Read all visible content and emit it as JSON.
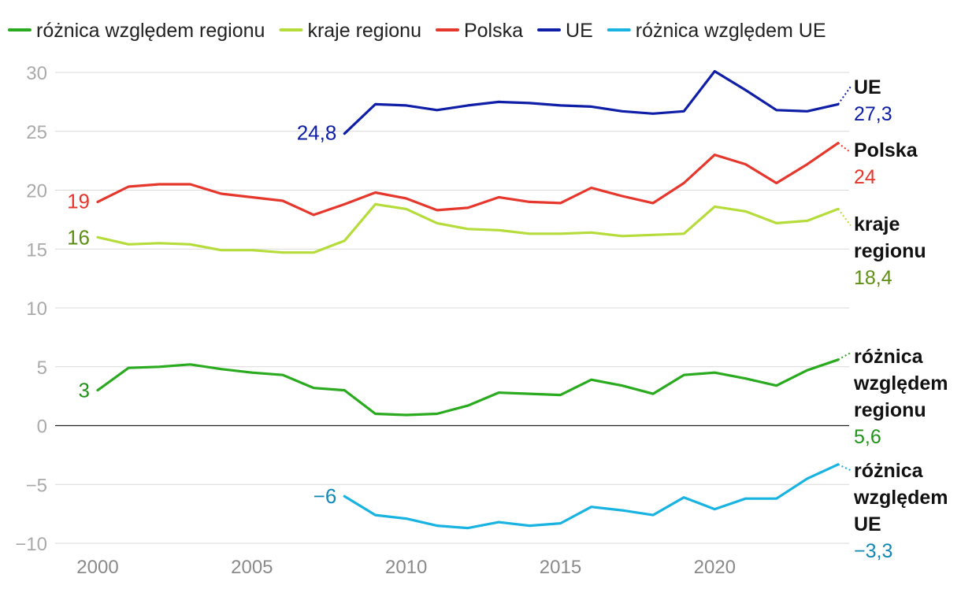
{
  "chart_data": {
    "type": "line",
    "title": "",
    "xlabel": "",
    "ylabel": "",
    "xlim": [
      2000,
      2024
    ],
    "ylim": [
      -10,
      30
    ],
    "yticks": [
      -10,
      -5,
      0,
      5,
      10,
      15,
      20,
      25,
      30
    ],
    "ytick_labels": [
      "−10",
      "−5",
      "0",
      "5",
      "10",
      "15",
      "20",
      "25",
      "30"
    ],
    "xticks": [
      2000,
      2005,
      2010,
      2015,
      2020
    ],
    "xtick_labels": [
      "2000",
      "2005",
      "2010",
      "2015",
      "2020"
    ],
    "grid": true,
    "legend_position": "top",
    "colors": {
      "roznica_regionu": "#2aaa1e",
      "roznica_regionu_text": "#21921a",
      "kraje_regionu": "#b6dc3c",
      "kraje_regionu_text": "#5e8f15",
      "polska": "#e6372d",
      "ue": "#0f1ea6",
      "roznica_ue": "#18b3e0",
      "roznica_ue_text": "#1289b5"
    },
    "series": [
      {
        "id": "roznica_regionu",
        "name": "różnica względem regionu",
        "end_label_lines": [
          "różnica",
          "względem",
          "regionu"
        ],
        "start_value_label": "3",
        "end_value_label": "5,6",
        "x": [
          2000,
          2001,
          2002,
          2003,
          2004,
          2005,
          2006,
          2007,
          2008,
          2009,
          2010,
          2011,
          2012,
          2013,
          2014,
          2015,
          2016,
          2017,
          2018,
          2019,
          2020,
          2021,
          2022,
          2023,
          2024
        ],
        "values": [
          3.0,
          4.9,
          5.0,
          5.2,
          4.8,
          4.5,
          4.3,
          3.2,
          3.0,
          1.0,
          0.9,
          1.0,
          1.7,
          2.8,
          2.7,
          2.6,
          3.9,
          3.4,
          2.7,
          4.3,
          4.5,
          4.0,
          3.4,
          4.7,
          5.6
        ]
      },
      {
        "id": "kraje_regionu",
        "name": "kraje regionu",
        "end_label_lines": [
          "kraje",
          "regionu"
        ],
        "start_value_label": "16",
        "end_value_label": "18,4",
        "x": [
          2000,
          2001,
          2002,
          2003,
          2004,
          2005,
          2006,
          2007,
          2008,
          2009,
          2010,
          2011,
          2012,
          2013,
          2014,
          2015,
          2016,
          2017,
          2018,
          2019,
          2020,
          2021,
          2022,
          2023,
          2024
        ],
        "values": [
          16.0,
          15.4,
          15.5,
          15.4,
          14.9,
          14.9,
          14.7,
          14.7,
          15.7,
          18.8,
          18.4,
          17.2,
          16.7,
          16.6,
          16.3,
          16.3,
          16.4,
          16.1,
          16.2,
          16.3,
          18.6,
          18.2,
          17.2,
          17.4,
          18.4
        ]
      },
      {
        "id": "polska",
        "name": "Polska",
        "end_label_lines": [
          "Polska"
        ],
        "start_value_label": "19",
        "end_value_label": "24",
        "x": [
          2000,
          2001,
          2002,
          2003,
          2004,
          2005,
          2006,
          2007,
          2008,
          2009,
          2010,
          2011,
          2012,
          2013,
          2014,
          2015,
          2016,
          2017,
          2018,
          2019,
          2020,
          2021,
          2022,
          2023,
          2024
        ],
        "values": [
          19.0,
          20.3,
          20.5,
          20.5,
          19.7,
          19.4,
          19.1,
          17.9,
          18.8,
          19.8,
          19.3,
          18.3,
          18.5,
          19.4,
          19.0,
          18.9,
          20.2,
          19.5,
          18.9,
          20.6,
          23.0,
          22.2,
          20.6,
          22.2,
          24.0
        ]
      },
      {
        "id": "ue",
        "name": "UE",
        "end_label_lines": [
          "UE"
        ],
        "start_value_label": "24,8",
        "end_value_label": "27,3",
        "x": [
          2008,
          2009,
          2010,
          2011,
          2012,
          2013,
          2014,
          2015,
          2016,
          2017,
          2018,
          2019,
          2020,
          2021,
          2022,
          2023,
          2024
        ],
        "values": [
          24.8,
          27.3,
          27.2,
          26.8,
          27.2,
          27.5,
          27.4,
          27.2,
          27.1,
          26.7,
          26.5,
          26.7,
          30.1,
          28.5,
          26.8,
          26.7,
          27.3
        ]
      },
      {
        "id": "roznica_ue",
        "name": "różnica względem UE",
        "end_label_lines": [
          "różnica",
          "względem",
          "UE"
        ],
        "start_value_label": "−6",
        "end_value_label": "−3,3",
        "x": [
          2008,
          2009,
          2010,
          2011,
          2012,
          2013,
          2014,
          2015,
          2016,
          2017,
          2018,
          2019,
          2020,
          2021,
          2022,
          2023,
          2024
        ],
        "values": [
          -6.0,
          -7.6,
          -7.9,
          -8.5,
          -8.7,
          -8.2,
          -8.5,
          -8.3,
          -6.9,
          -7.2,
          -7.6,
          -6.1,
          -7.1,
          -6.2,
          -6.2,
          -4.5,
          -3.3
        ]
      }
    ]
  }
}
